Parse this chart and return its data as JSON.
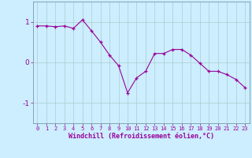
{
  "x": [
    0,
    1,
    2,
    3,
    4,
    5,
    6,
    7,
    8,
    9,
    10,
    11,
    12,
    13,
    14,
    15,
    16,
    17,
    18,
    19,
    20,
    21,
    22,
    23
  ],
  "y": [
    0.9,
    0.9,
    0.88,
    0.9,
    0.84,
    1.05,
    0.78,
    0.5,
    0.18,
    -0.08,
    -0.75,
    -0.38,
    -0.22,
    0.22,
    0.22,
    0.32,
    0.32,
    0.18,
    -0.02,
    -0.22,
    -0.22,
    -0.3,
    -0.42,
    -0.62
  ],
  "xlabel": "Windchill (Refroidissement éolien,°C)",
  "ylim": [
    -1.5,
    1.5
  ],
  "xlim": [
    -0.5,
    23.5
  ],
  "yticks": [
    -1,
    0,
    1
  ],
  "xticks": [
    0,
    1,
    2,
    3,
    4,
    5,
    6,
    7,
    8,
    9,
    10,
    11,
    12,
    13,
    14,
    15,
    16,
    17,
    18,
    19,
    20,
    21,
    22,
    23
  ],
  "line_color": "#990099",
  "bg_color": "#cceeff",
  "grid_color": "#aacccc",
  "tick_fontsize": 5.0,
  "xlabel_fontsize": 6.0
}
